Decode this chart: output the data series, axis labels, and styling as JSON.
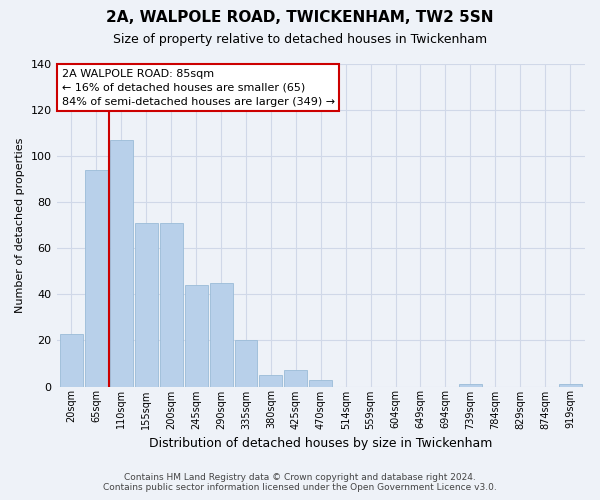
{
  "title": "2A, WALPOLE ROAD, TWICKENHAM, TW2 5SN",
  "subtitle": "Size of property relative to detached houses in Twickenham",
  "xlabel": "Distribution of detached houses by size in Twickenham",
  "ylabel": "Number of detached properties",
  "footer_line1": "Contains HM Land Registry data © Crown copyright and database right 2024.",
  "footer_line2": "Contains public sector information licensed under the Open Government Licence v3.0.",
  "bar_labels": [
    "20sqm",
    "65sqm",
    "110sqm",
    "155sqm",
    "200sqm",
    "245sqm",
    "290sqm",
    "335sqm",
    "380sqm",
    "425sqm",
    "470sqm",
    "514sqm",
    "559sqm",
    "604sqm",
    "649sqm",
    "694sqm",
    "739sqm",
    "784sqm",
    "829sqm",
    "874sqm",
    "919sqm"
  ],
  "bar_values": [
    23,
    94,
    107,
    71,
    71,
    44,
    45,
    20,
    5,
    7,
    3,
    0,
    0,
    0,
    0,
    0,
    1,
    0,
    0,
    0,
    1
  ],
  "bar_color": "#b8d0ea",
  "bar_edge_color": "#9bbcd8",
  "grid_color": "#d0d8e8",
  "background_color": "#eef2f8",
  "property_line_x": 1.5,
  "property_line_color": "#cc0000",
  "annotation_title": "2A WALPOLE ROAD: 85sqm",
  "annotation_line1": "← 16% of detached houses are smaller (65)",
  "annotation_line2": "84% of semi-detached houses are larger (349) →",
  "annotation_box_color": "#ffffff",
  "annotation_box_edge_color": "#cc0000",
  "ylim": [
    0,
    140
  ],
  "yticks": [
    0,
    20,
    40,
    60,
    80,
    100,
    120,
    140
  ]
}
